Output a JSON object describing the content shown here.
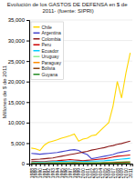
{
  "chart_data": {
    "type": "line",
    "title": "Evolución de los GASTOS DE DEFENSA en $ de 2011- (fuente: SIPRI)",
    "y_label": "Millones de $ de 2011",
    "x": [
      1988,
      1989,
      1990,
      1991,
      1992,
      1993,
      1994,
      1995,
      1996,
      1997,
      1998,
      1999,
      2000,
      2001,
      2002,
      2003,
      2004,
      2005,
      2006,
      2007,
      2008,
      2009,
      2010,
      2011
    ],
    "series": [
      {
        "name": "Chile",
        "color": "#FFD700",
        "values": [
          3800,
          3600,
          3200,
          4500,
          5200,
          5500,
          5800,
          6200,
          6500,
          6800,
          7200,
          5500,
          6000,
          6200,
          6800,
          7000,
          8000,
          9000,
          10000,
          14000,
          20000,
          16000,
          22000,
          27000
        ]
      },
      {
        "name": "Argentina",
        "color": "#4444CC",
        "values": [
          2500,
          2400,
          2300,
          2400,
          2500,
          2600,
          2700,
          2900,
          3100,
          3300,
          3400,
          3200,
          2600,
          2200,
          1200,
          1400,
          1600,
          1800,
          2000,
          2200,
          2600,
          2800,
          3000,
          3200
        ]
      },
      {
        "name": "Colombia",
        "color": "#8B1A1A",
        "values": [
          1000,
          1050,
          1100,
          1200,
          1300,
          1400,
          1600,
          1800,
          2000,
          2200,
          2400,
          2600,
          2800,
          3000,
          3300,
          3500,
          3700,
          3900,
          4200,
          4400,
          4700,
          4900,
          5200,
          5500
        ]
      },
      {
        "name": "Peru",
        "color": "#CC0000",
        "values": [
          600,
          550,
          500,
          500,
          600,
          650,
          700,
          800,
          900,
          1000,
          900,
          800,
          700,
          800,
          900,
          1000,
          1100,
          1200,
          1400,
          1600,
          1800,
          1900,
          2000,
          2100
        ]
      },
      {
        "name": "Ecuador",
        "color": "#00CCFF",
        "values": [
          400,
          380,
          350,
          400,
          450,
          500,
          520,
          540,
          560,
          600,
          620,
          600,
          550,
          580,
          600,
          620,
          650,
          700,
          800,
          850,
          1000,
          1100,
          1200,
          1300
        ]
      },
      {
        "name": "Uruguay",
        "color": "#90EE90",
        "values": [
          250,
          230,
          210,
          220,
          230,
          250,
          260,
          270,
          280,
          290,
          300,
          290,
          270,
          260,
          240,
          250,
          270,
          300,
          350,
          400,
          450,
          470,
          500,
          530
        ]
      },
      {
        "name": "Paraguay",
        "color": "#FF8C00",
        "values": [
          80,
          75,
          70,
          75,
          80,
          90,
          100,
          110,
          120,
          130,
          135,
          130,
          120,
          110,
          100,
          110,
          120,
          130,
          150,
          170,
          190,
          200,
          210,
          220
        ]
      },
      {
        "name": "Bolivia",
        "color": "#8B4513",
        "values": [
          130,
          120,
          110,
          120,
          130,
          140,
          150,
          160,
          170,
          180,
          190,
          180,
          170,
          160,
          150,
          160,
          180,
          200,
          230,
          260,
          300,
          330,
          360,
          380
        ]
      },
      {
        "name": "Guyana",
        "color": "#228B22",
        "values": [
          18,
          16,
          14,
          15,
          16,
          18,
          20,
          22,
          24,
          26,
          28,
          26,
          24,
          23,
          22,
          23,
          25,
          28,
          32,
          37,
          42,
          47,
          52,
          57
        ]
      }
    ],
    "xlim": [
      1987.5,
      2011.5
    ],
    "xticks": [
      1988,
      1989,
      1990,
      1991,
      1992,
      1993,
      1994,
      1995,
      1996,
      1997,
      1998,
      1999,
      2000,
      2001,
      2002,
      2003,
      2004,
      2005,
      2006,
      2007,
      2008,
      2009,
      2010,
      2011
    ],
    "ylim": [
      0,
      35000
    ],
    "yticks": [
      0,
      {
        "value": 5000,
        "label": "5,000"
      },
      {
        "value": 10000,
        "label": "10,000"
      },
      {
        "value": 15000,
        "label": "15,000"
      },
      {
        "value": 20000,
        "label": "20,000"
      },
      {
        "value": 25000,
        "label": "25,000"
      },
      {
        "value": 30000,
        "label": "30,000"
      },
      {
        "value": 35000,
        "label": "35,000"
      }
    ],
    "grid": true,
    "legend": "upper left"
  }
}
